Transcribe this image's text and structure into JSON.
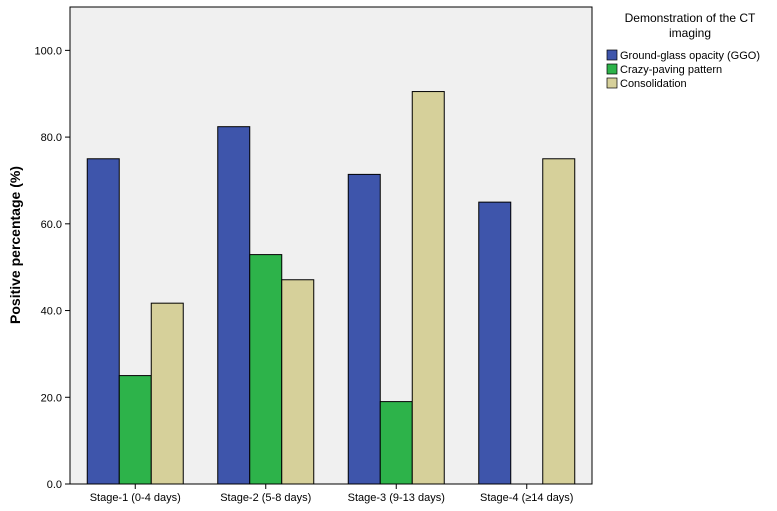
{
  "chart_data": {
    "type": "bar",
    "title": "",
    "xlabel": "",
    "ylabel": "Positive percentage (%)",
    "ylim": [
      0,
      110
    ],
    "yticks": [
      "0.0",
      "20.0",
      "40.0",
      "60.0",
      "80.0",
      "100.0"
    ],
    "grid": false,
    "legend_position": "top-right",
    "legend_title": "Demonstration of the CT imaging",
    "categories": [
      "Stage-1 (0-4 days)",
      "Stage-2 (5-8 days)",
      "Stage-3 (9-13 days)",
      "Stage-4 (≥14 days)"
    ],
    "series": [
      {
        "name": "Ground-glass opacity (GGO)",
        "color": "#3e55ab",
        "values": [
          75.0,
          82.4,
          71.4,
          65.0
        ]
      },
      {
        "name": "Crazy-paving pattern",
        "color": "#2db34a",
        "values": [
          25.0,
          52.9,
          19.0,
          0
        ]
      },
      {
        "name": "Consolidation",
        "color": "#d6d09a",
        "values": [
          41.7,
          47.1,
          90.5,
          75.0
        ]
      }
    ]
  }
}
